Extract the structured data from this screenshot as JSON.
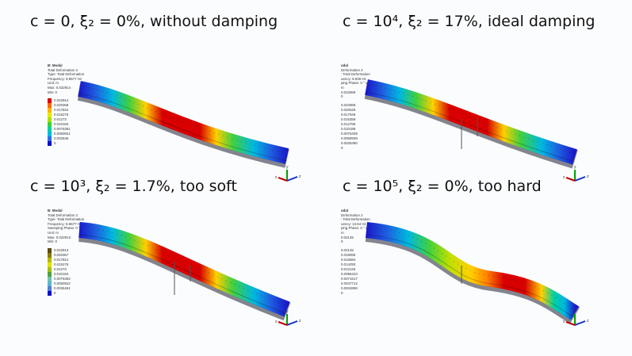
{
  "panels": [
    {
      "title": "c = 0, ξ₂ = 0%, without damping",
      "legend": {
        "header": [
          "B: Modal",
          "Total Deformation 2",
          "Type: Total Deformation",
          "Frequency: 8.8577 Hz",
          "Unit: m",
          "Max: 0.022914",
          "Min: 0"
        ],
        "values": [
          "0.022914",
          "0.020368",
          "0.017822",
          "0.015276",
          "0.01273",
          "0.010184",
          "0.0076381",
          "0.0050921",
          "0.002546",
          "0"
        ],
        "colors": [
          "#d40000",
          "#ff6a00",
          "#ffb400",
          "#e8e800",
          "#a8e000",
          "#40d040",
          "#00d0a0",
          "#00b8e0",
          "#3070e0",
          "#1010c0"
        ]
      }
    },
    {
      "title": "c = 10⁴, ξ₂ = 17%, ideal damping",
      "legend": {
        "header": [
          "odal",
          "Deformation 2",
          ": Total Deformation",
          "uency: 8.836 Hz",
          "ping Phase: 0 ° ud",
          "m",
          "0.022969",
          "0"
        ],
        "values": [
          "0.022969",
          "0.020528",
          "0.017946",
          "0.015359",
          "0.012769",
          "0.010189",
          "0.0076409",
          "0.0050939",
          "0.0025490",
          "0"
        ],
        "colors": []
      }
    },
    {
      "title": "c = 10³, ξ₂ = 1.7%, too soft",
      "legend": {
        "header": [
          "B: Modal",
          "Total Deformation 2",
          "Type: Total Deformation",
          "Frequency: 8.8577 Hz",
          "Sweeping Phase: 0 ° ud",
          "Unit: m",
          "Max: 0.022913",
          "Min: 0"
        ],
        "values": [
          "0.022913",
          "0.020367",
          "0.017821",
          "0.015276",
          "0.01273",
          "0.010184",
          "0.0076382",
          "0.0050922",
          "0.0025461",
          "0"
        ],
        "colors": [
          "#5a4a10",
          "#8a7a10",
          "#b8b810",
          "#e0e000",
          "#a0c020",
          "#50a040",
          "#70c0b0",
          "#60b0d0",
          "#5080d0",
          "#1010c0"
        ]
      }
    },
    {
      "title": "c = 10⁵, ξ₂ = 0%, too hard",
      "legend": {
        "header": [
          "odal",
          "Deformation 2",
          ": Total Deformation",
          "uency: 13.54 Hz",
          "ping Phase: 0 ° ud",
          "m",
          "0.02145",
          "0"
        ],
        "values": [
          "0.02145",
          "0.019065",
          "0.016684",
          "0.014293",
          "0.012125",
          "0.0096423",
          "0.0071517",
          "0.0047712",
          "0.0024806",
          "0"
        ],
        "colors": []
      }
    }
  ],
  "colors": {
    "beam_low": "#1a1ac8",
    "beam_high": "#d80000",
    "axis_x": "#c00000",
    "axis_y": "#00a000",
    "axis_z": "#1030c0"
  },
  "axis_labels": {
    "x": "x",
    "y": "y",
    "z": "z"
  }
}
